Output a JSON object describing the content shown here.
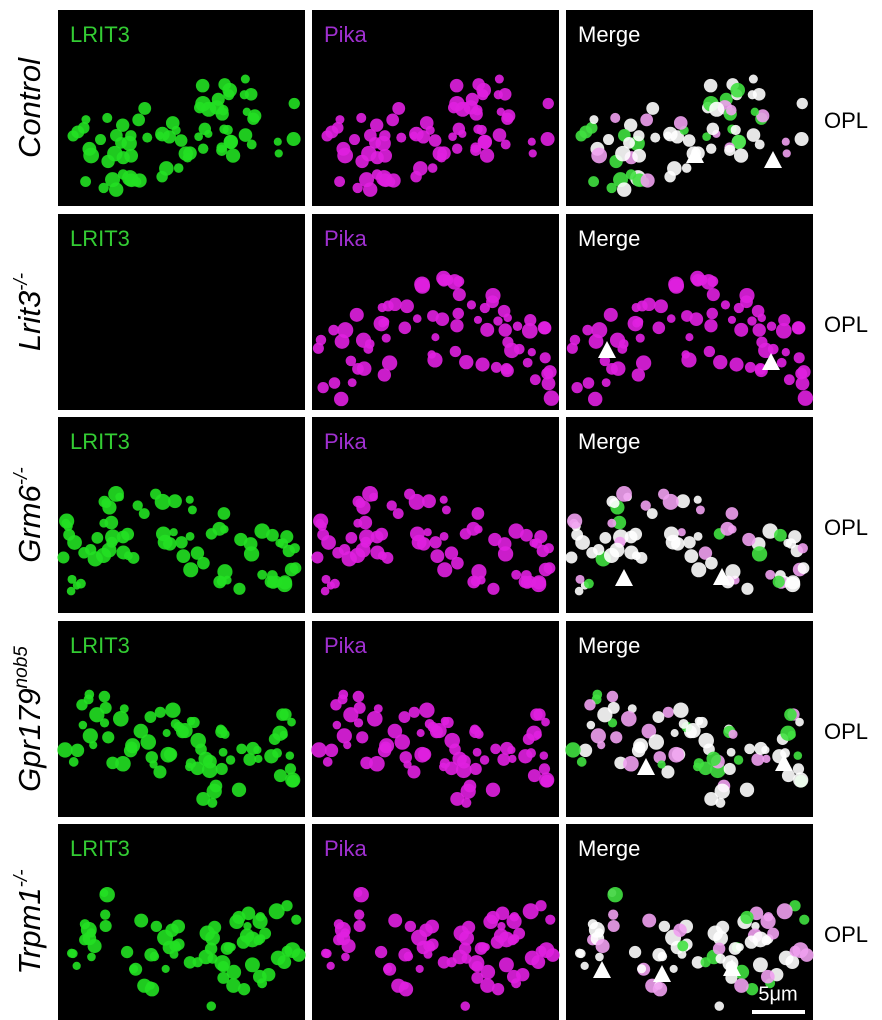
{
  "columns": [
    "LRIT3",
    "Pika",
    "Merge"
  ],
  "layer_label": "OPL",
  "scale_bar": "5μm",
  "rows": [
    {
      "gene": "Control"
    },
    {
      "gene": "Lrit3",
      "superscript": "-/-"
    },
    {
      "gene": "Grm6",
      "superscript": "-/-"
    },
    {
      "gene": "Gpr179",
      "superscript": "nob5"
    },
    {
      "gene": "Trpm1",
      "superscript": "-/-"
    }
  ]
}
